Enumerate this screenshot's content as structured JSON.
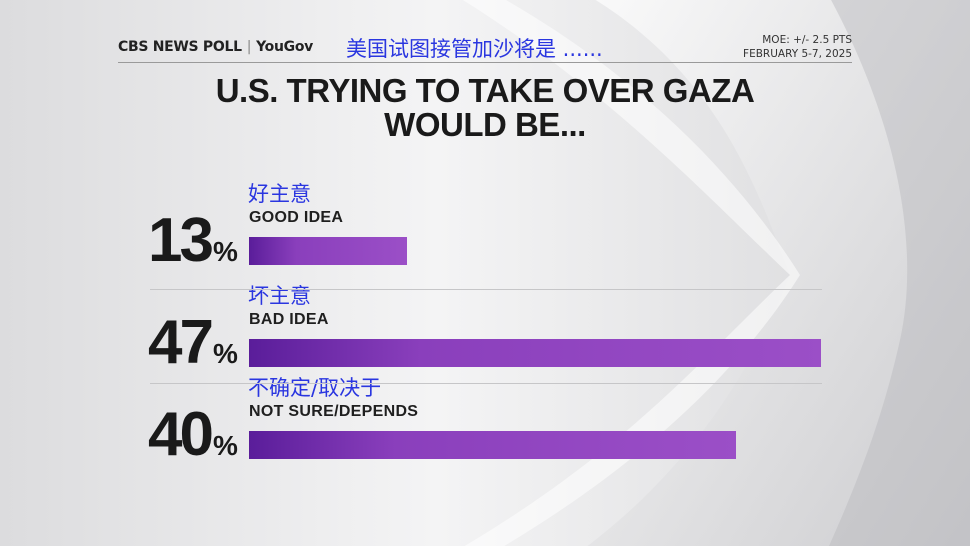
{
  "header": {
    "brand_cbs": "CBS NEWS POLL",
    "brand_partner": "YouGov",
    "chinese_title": "美国试图接管加沙将是 ......",
    "moe": "MOE: +/- 2.5 PTS",
    "dates": "FEBRUARY 5-7, 2025"
  },
  "chart_data": {
    "type": "bar",
    "orientation": "horizontal",
    "title": "U.S. TRYING TO TAKE OVER GAZA WOULD BE...",
    "title_line1": "U.S. TRYING TO TAKE OVER GAZA",
    "title_line2": "WOULD BE...",
    "value_unit": "%",
    "xlim": [
      0,
      47
    ],
    "categories": [
      "GOOD IDEA",
      "BAD IDEA",
      "NOT SURE/DEPENDS"
    ],
    "categories_cn": [
      "好主意",
      "坏主意",
      "不确定/取决于"
    ],
    "values": [
      13,
      47,
      40
    ],
    "bar_color": "#8a3fbc",
    "grid": false
  },
  "colors": {
    "accent_cn_text": "#2a36e0",
    "bar_purple": "#8a3fbc"
  }
}
